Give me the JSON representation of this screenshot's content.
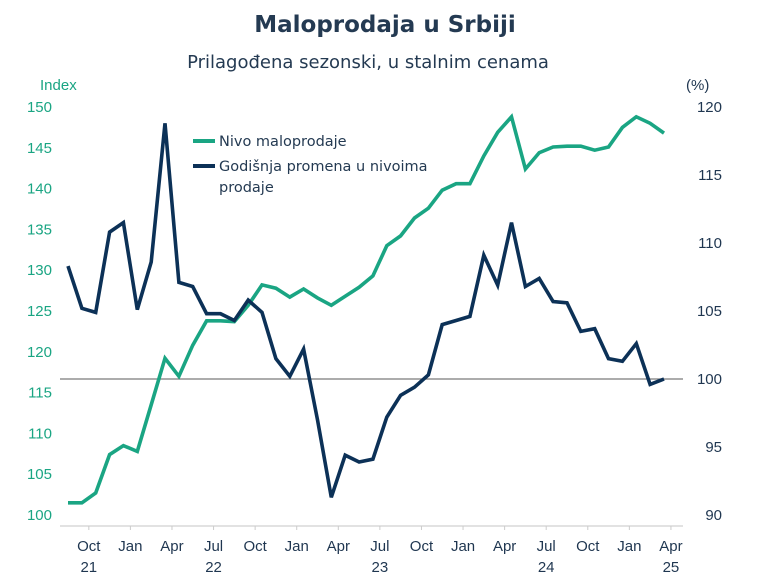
{
  "chart_data": {
    "type": "line",
    "title": "Maloprodaja u Srbiji",
    "subtitle": "Prilagođena sezonski, u stalnim cenama",
    "x": [
      "2021-08",
      "2021-09",
      "2021-10",
      "2021-11",
      "2021-12",
      "2022-01",
      "2022-02",
      "2022-03",
      "2022-04",
      "2022-05",
      "2022-06",
      "2022-07",
      "2022-08",
      "2022-09",
      "2022-10",
      "2022-11",
      "2022-12",
      "2023-01",
      "2023-02",
      "2023-03",
      "2023-04",
      "2023-05",
      "2023-06",
      "2023-07",
      "2023-08",
      "2023-09",
      "2023-10",
      "2023-11",
      "2023-12",
      "2024-01",
      "2024-02",
      "2024-03",
      "2024-04",
      "2024-05",
      "2024-06",
      "2024-07",
      "2024-08",
      "2024-09",
      "2024-10",
      "2024-11",
      "2024-12",
      "2025-01",
      "2025-02",
      "2025-03"
    ],
    "x_tick_labels": [
      {
        "month": "Oct",
        "year": "21",
        "at": "2021-10"
      },
      {
        "month": "Jan",
        "year": "",
        "at": "2022-01"
      },
      {
        "month": "Apr",
        "year": "",
        "at": "2022-04"
      },
      {
        "month": "Jul",
        "year": "22",
        "at": "2022-07"
      },
      {
        "month": "Oct",
        "year": "",
        "at": "2022-10"
      },
      {
        "month": "Jan",
        "year": "",
        "at": "2023-01"
      },
      {
        "month": "Apr",
        "year": "",
        "at": "2023-04"
      },
      {
        "month": "Jul",
        "year": "23",
        "at": "2023-07"
      },
      {
        "month": "Oct",
        "year": "",
        "at": "2023-10"
      },
      {
        "month": "Jan",
        "year": "",
        "at": "2024-01"
      },
      {
        "month": "Apr",
        "year": "",
        "at": "2024-04"
      },
      {
        "month": "Jul",
        "year": "24",
        "at": "2024-07"
      },
      {
        "month": "Oct",
        "year": "",
        "at": "2024-10"
      },
      {
        "month": "Jan",
        "year": "",
        "at": "2025-01"
      },
      {
        "month": "Apr",
        "year": "25",
        "at": "2025-04"
      }
    ],
    "y_left": {
      "label": "Index",
      "range": [
        100,
        150
      ],
      "ticks": [
        100,
        105,
        110,
        115,
        120,
        125,
        130,
        135,
        140,
        145,
        150
      ]
    },
    "y_right": {
      "label": "(%)",
      "range": [
        90,
        120
      ],
      "ticks": [
        90,
        95,
        100,
        105,
        110,
        115,
        120
      ]
    },
    "reference_line": {
      "axis": "right",
      "value": 100
    },
    "grid": false,
    "legend": {
      "placement": "top-left-inside"
    },
    "series": [
      {
        "name": "Nivo maloprodaje",
        "axis": "left",
        "color": "#1aa583",
        "values": [
          101.5,
          101.5,
          102.7,
          107.4,
          108.5,
          107.8,
          113.5,
          119.2,
          117.0,
          120.8,
          123.8,
          123.8,
          123.7,
          125.7,
          128.2,
          127.8,
          126.7,
          127.7,
          126.6,
          125.7,
          126.8,
          127.9,
          129.3,
          133.0,
          134.2,
          136.4,
          137.6,
          139.8,
          140.6,
          140.6,
          144.0,
          146.9,
          148.8,
          142.4,
          144.4,
          145.1,
          145.2,
          145.2,
          144.7,
          145.1,
          147.5,
          148.8,
          148.0,
          146.8
        ]
      },
      {
        "name": "Godišnja promena u nivoima prodaje",
        "legend_lines": [
          "Godišnja promena u nivoima",
          "prodaje"
        ],
        "axis": "right",
        "color": "#0c3157",
        "values": [
          108.3,
          105.2,
          104.9,
          110.8,
          111.5,
          105.1,
          108.6,
          118.8,
          107.1,
          106.8,
          104.8,
          104.8,
          104.3,
          105.8,
          104.9,
          101.5,
          100.2,
          102.2,
          97.0,
          91.3,
          94.4,
          93.9,
          94.1,
          97.2,
          98.8,
          99.4,
          100.3,
          104.0,
          104.3,
          104.6,
          109.1,
          106.9,
          111.5,
          106.8,
          107.4,
          105.7,
          105.6,
          103.5,
          103.7,
          101.5,
          101.3,
          102.6,
          99.6,
          100.0
        ]
      }
    ]
  }
}
